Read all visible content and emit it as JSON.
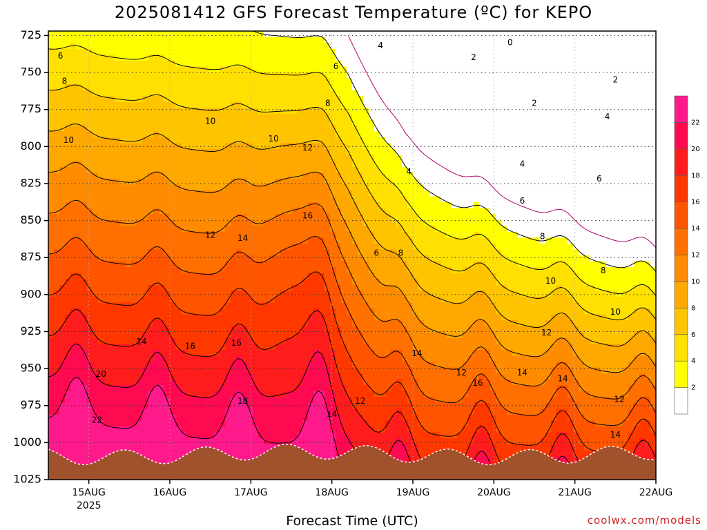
{
  "chart_data": {
    "type": "heatmap",
    "title": "2025081412 GFS Forecast Temperature (ºC) for KEPO",
    "xlabel": "Forecast Time (UTC)",
    "ylabel": "",
    "x_ticks": [
      {
        "label": "15AUG",
        "sub": "2025",
        "day": 1
      },
      {
        "label": "16AUG",
        "sub": "",
        "day": 2
      },
      {
        "label": "17AUG",
        "sub": "",
        "day": 3
      },
      {
        "label": "18AUG",
        "sub": "",
        "day": 4
      },
      {
        "label": "19AUG",
        "sub": "",
        "day": 5
      },
      {
        "label": "20AUG",
        "sub": "",
        "day": 6
      },
      {
        "label": "21AUG",
        "sub": "",
        "day": 7
      },
      {
        "label": "22AUG",
        "sub": "",
        "day": 8
      }
    ],
    "x_range_days": [
      0.5,
      8.0
    ],
    "y_ticks": [
      "725",
      "750",
      "775",
      "800",
      "825",
      "850",
      "875",
      "900",
      "925",
      "950",
      "975",
      "1000",
      "1025"
    ],
    "y_range_hpa": [
      722,
      1025
    ],
    "colorbar": {
      "levels": [
        "2",
        "4",
        "6",
        "8",
        "10",
        "12",
        "14",
        "16",
        "18",
        "20",
        "22"
      ],
      "colors": [
        "#ffffff",
        "#ffff00",
        "#ffe000",
        "#ffc400",
        "#ffa800",
        "#ff8c00",
        "#ff7000",
        "#ff5400",
        "#ff3800",
        "#ff1c1c",
        "#ff0a50",
        "#ff1a8c"
      ]
    },
    "ground_color": "#a0522d",
    "contour_labels": [
      {
        "text": "0",
        "day": 6.2,
        "p": 730
      },
      {
        "text": "2",
        "day": 5.75,
        "p": 740
      },
      {
        "text": "2",
        "day": 6.5,
        "p": 771
      },
      {
        "text": "2",
        "day": 7.5,
        "p": 755
      },
      {
        "text": "4",
        "day": 4.6,
        "p": 732
      },
      {
        "text": "4",
        "day": 4.95,
        "p": 817
      },
      {
        "text": "4",
        "day": 6.35,
        "p": 812
      },
      {
        "text": "4",
        "day": 7.4,
        "p": 780
      },
      {
        "text": "6",
        "day": 0.65,
        "p": 739
      },
      {
        "text": "6",
        "day": 4.05,
        "p": 746
      },
      {
        "text": "6",
        "day": 4.55,
        "p": 872
      },
      {
        "text": "6",
        "day": 6.35,
        "p": 837
      },
      {
        "text": "6",
        "day": 7.3,
        "p": 822
      },
      {
        "text": "8",
        "day": 0.7,
        "p": 756
      },
      {
        "text": "8",
        "day": 3.95,
        "p": 771
      },
      {
        "text": "8",
        "day": 4.85,
        "p": 872
      },
      {
        "text": "8",
        "day": 6.6,
        "p": 861
      },
      {
        "text": "8",
        "day": 7.35,
        "p": 884
      },
      {
        "text": "10",
        "day": 0.75,
        "p": 796
      },
      {
        "text": "10",
        "day": 2.5,
        "p": 783
      },
      {
        "text": "10",
        "day": 3.28,
        "p": 795
      },
      {
        "text": "10",
        "day": 6.7,
        "p": 891
      },
      {
        "text": "10",
        "day": 7.5,
        "p": 912
      },
      {
        "text": "12",
        "day": 3.7,
        "p": 801
      },
      {
        "text": "12",
        "day": 2.5,
        "p": 860
      },
      {
        "text": "12",
        "day": 4.35,
        "p": 972
      },
      {
        "text": "12",
        "day": 5.6,
        "p": 953
      },
      {
        "text": "12",
        "day": 6.65,
        "p": 926
      },
      {
        "text": "12",
        "day": 7.55,
        "p": 971
      },
      {
        "text": "14",
        "day": 2.9,
        "p": 862
      },
      {
        "text": "14",
        "day": 1.65,
        "p": 932
      },
      {
        "text": "14",
        "day": 4.0,
        "p": 981
      },
      {
        "text": "14",
        "day": 5.05,
        "p": 940
      },
      {
        "text": "14",
        "day": 6.35,
        "p": 953
      },
      {
        "text": "14",
        "day": 6.85,
        "p": 957
      },
      {
        "text": "14",
        "day": 7.5,
        "p": 995
      },
      {
        "text": "16",
        "day": 3.7,
        "p": 847
      },
      {
        "text": "16",
        "day": 2.25,
        "p": 935
      },
      {
        "text": "16",
        "day": 2.82,
        "p": 933
      },
      {
        "text": "16",
        "day": 5.8,
        "p": 960
      },
      {
        "text": "18",
        "day": 2.9,
        "p": 972
      },
      {
        "text": "20",
        "day": 1.15,
        "p": 954
      },
      {
        "text": "22",
        "day": 1.1,
        "p": 985
      }
    ]
  },
  "credit": "coolwx.com/models"
}
